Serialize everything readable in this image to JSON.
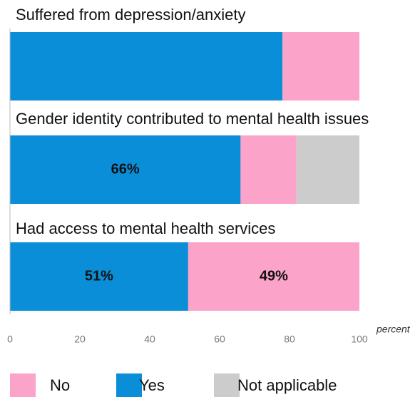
{
  "chart_data": {
    "type": "stacked_barh",
    "categories": [
      "Suffered from depression/anxiety",
      "Gender identity contributed to mental health issues",
      "Had access to mental health services"
    ],
    "series": [
      {
        "name": "Yes",
        "color": "#0b8ed8",
        "values": [
          78,
          66,
          51
        ],
        "value_labels": [
          null,
          "66%",
          "51%"
        ]
      },
      {
        "name": "No",
        "color": "#fba3c9",
        "values": [
          22,
          16,
          49
        ],
        "value_labels": [
          null,
          null,
          "49%"
        ]
      },
      {
        "name": "Not applicable",
        "color": "#cccccc",
        "values": [
          0,
          18,
          0
        ]
      }
    ],
    "xlim": [
      0,
      100
    ],
    "xticks": [
      0,
      20,
      40,
      60,
      80,
      100
    ],
    "xlabel": "percent"
  }
}
